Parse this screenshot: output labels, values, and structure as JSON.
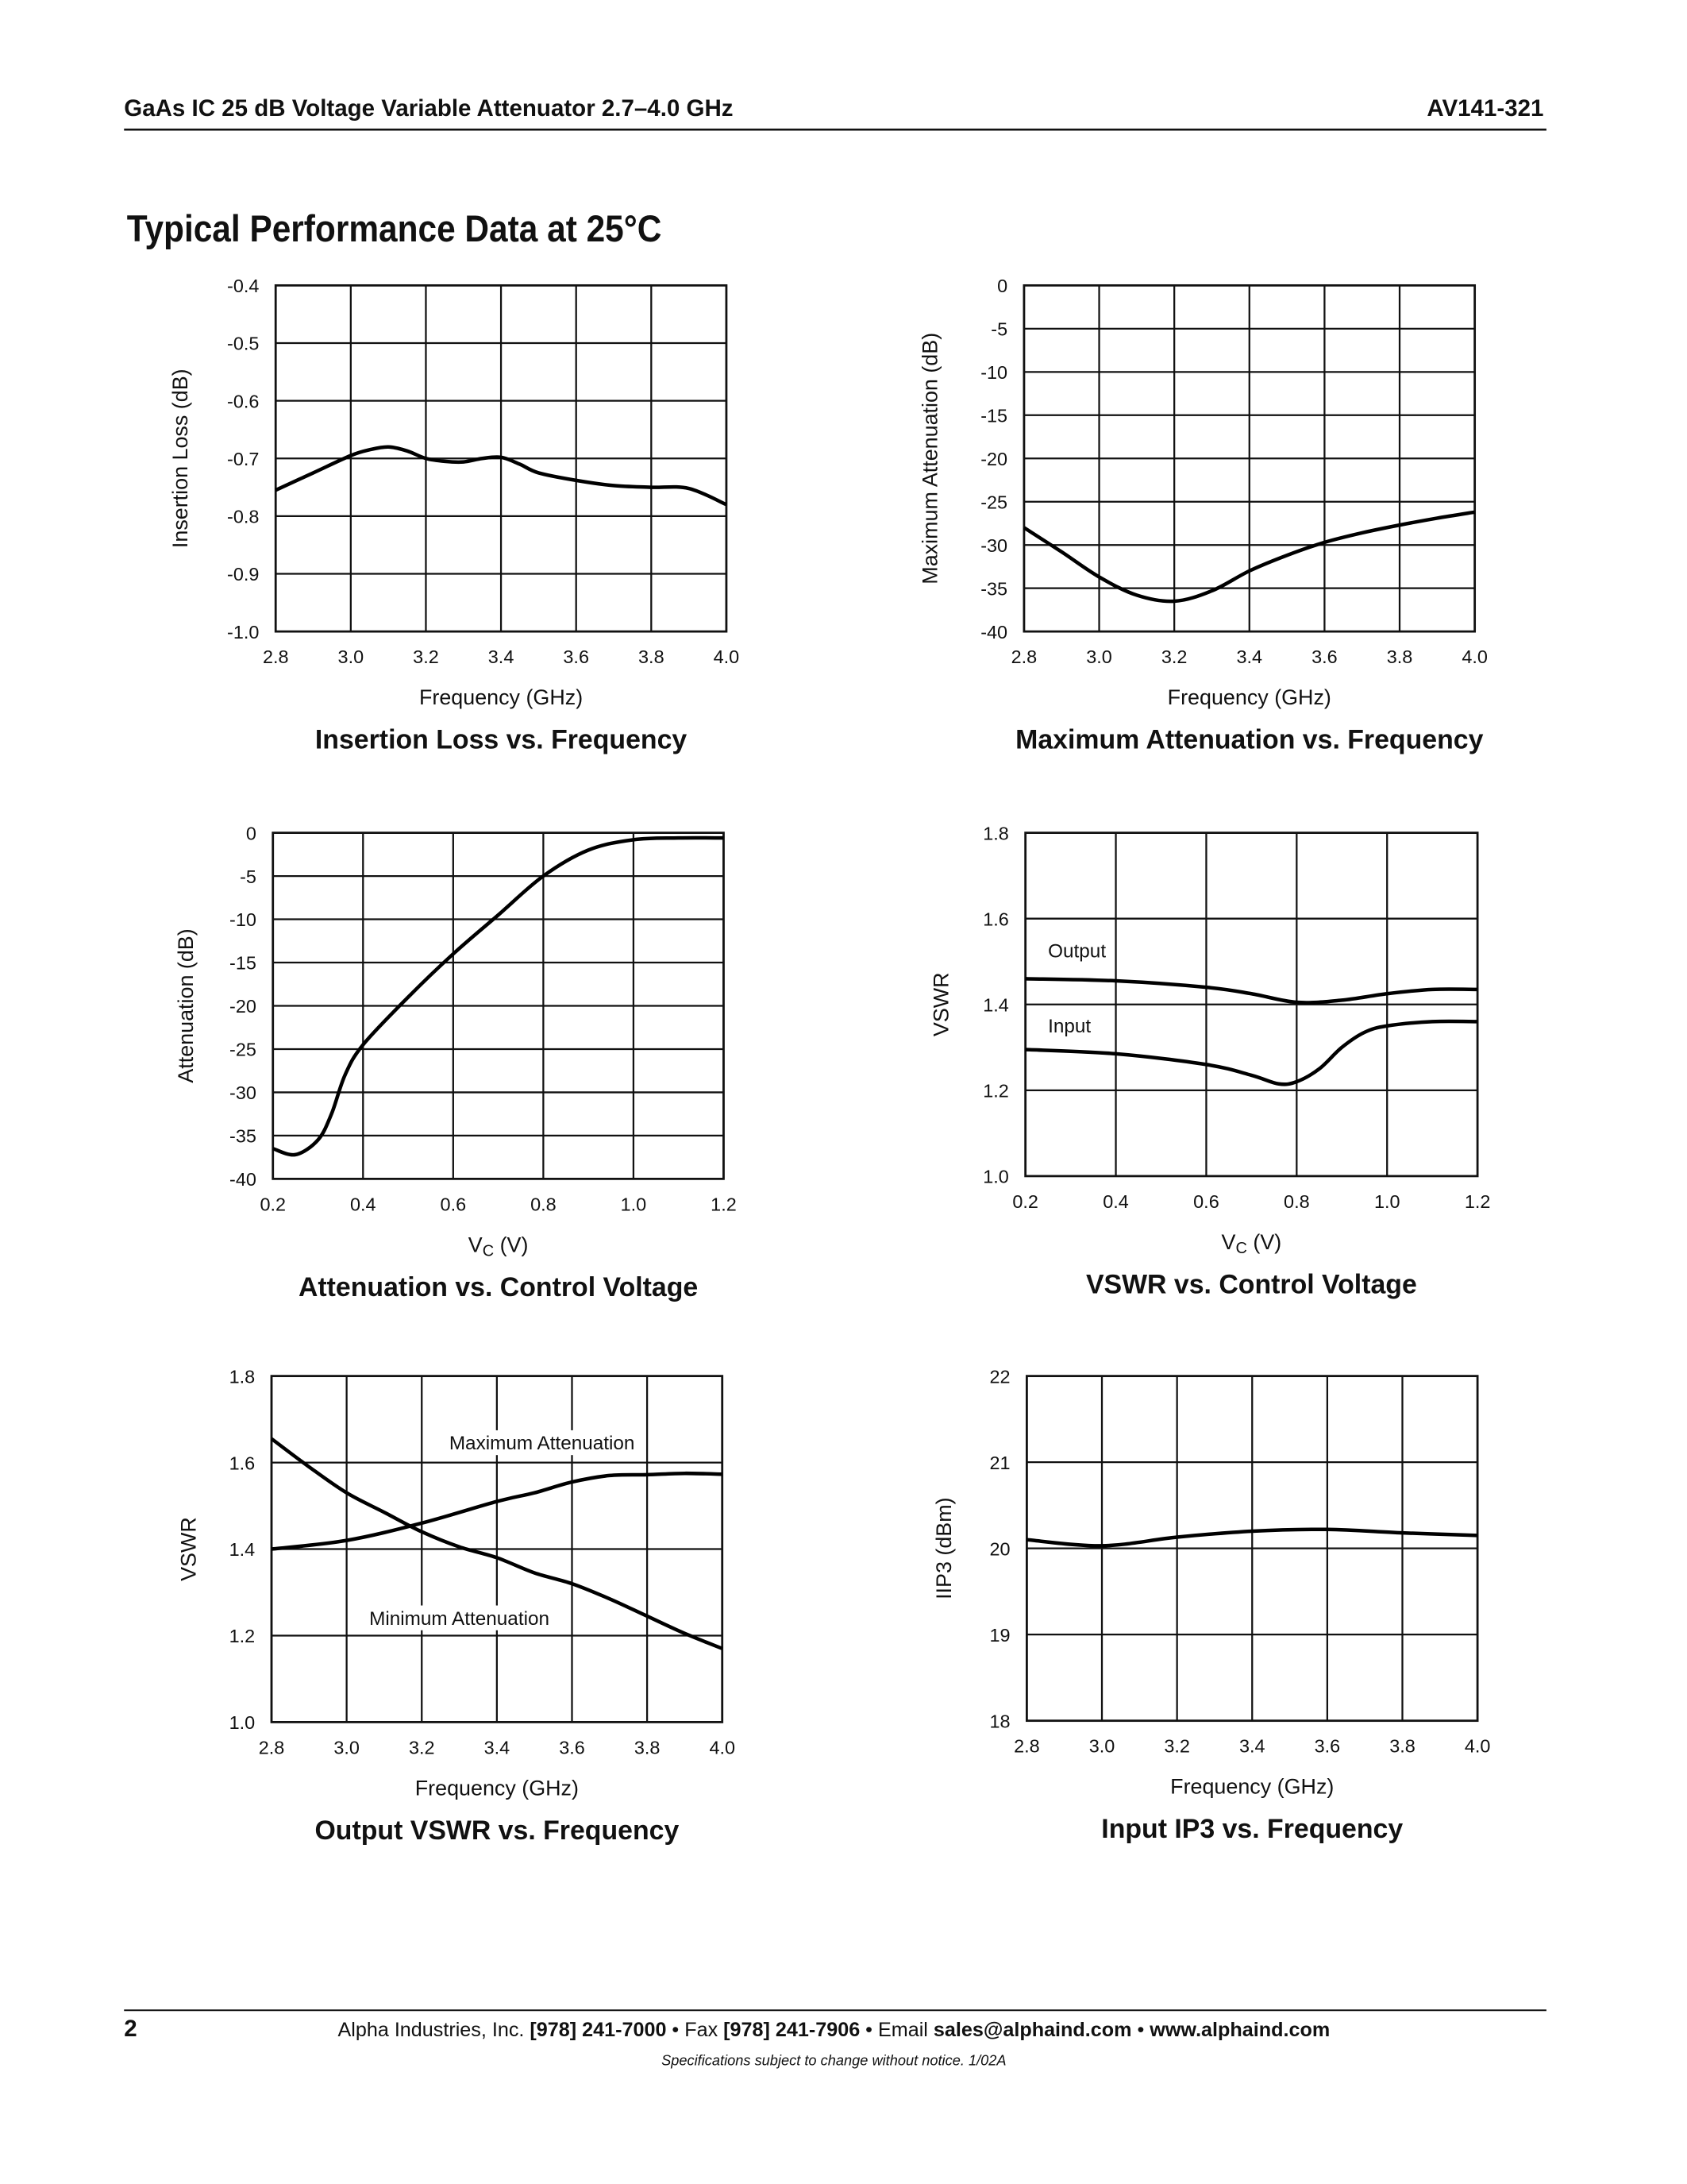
{
  "header": {
    "title": "GaAs IC 25 dB Voltage Variable Attenuator 2.7–4.0 GHz",
    "part_number": "AV141-321",
    "section_title": "Typical Performance Data at 25°C"
  },
  "footer": {
    "page_number": "2",
    "company": "Alpha Industries, Inc. ",
    "phone": "[978] 241-7000",
    "fax_label": " • Fax ",
    "fax": "[978] 241-7906",
    "email_label": " • Email ",
    "email": "sales@alphaind.com",
    "sep": " • ",
    "website": "www.alphaind.com",
    "note": "Specifications subject to change without notice.  1/02A"
  },
  "chart_data": [
    {
      "type": "line",
      "title": "Insertion Loss vs. Frequency",
      "xlabel": "Frequency (GHz)",
      "ylabel": "Insertion Loss (dB)",
      "xlim": [
        2.8,
        4.0
      ],
      "ylim": [
        -1.0,
        -0.4
      ],
      "xticks": [
        "2.8",
        "3.0",
        "3.2",
        "3.4",
        "3.6",
        "3.8",
        "4.0"
      ],
      "yticks": [
        "-1.0",
        "-0.9",
        "-0.8",
        "-0.7",
        "-0.6",
        "-0.5",
        "-0.4"
      ],
      "grid": true,
      "series": [
        {
          "x": [
            2.8,
            2.9,
            3.0,
            3.05,
            3.1,
            3.15,
            3.2,
            3.25,
            3.3,
            3.35,
            3.4,
            3.45,
            3.5,
            3.6,
            3.7,
            3.8,
            3.9,
            4.0
          ],
          "y": [
            -0.755,
            -0.725,
            -0.695,
            -0.685,
            -0.68,
            -0.687,
            -0.7,
            -0.705,
            -0.706,
            -0.7,
            -0.698,
            -0.71,
            -0.725,
            -0.738,
            -0.747,
            -0.75,
            -0.752,
            -0.78
          ]
        }
      ]
    },
    {
      "type": "line",
      "title": "Maximum Attenuation vs. Frequency",
      "xlabel": "Frequency (GHz)",
      "ylabel": "Maximum Attenuation (dB)",
      "xlim": [
        2.8,
        4.0
      ],
      "ylim": [
        -40,
        0
      ],
      "xticks": [
        "2.8",
        "3.0",
        "3.2",
        "3.4",
        "3.6",
        "3.8",
        "4.0"
      ],
      "yticks": [
        "-40",
        "-35",
        "-30",
        "-25",
        "-20",
        "-15",
        "-10",
        "-5",
        "0"
      ],
      "grid": true,
      "series": [
        {
          "x": [
            2.8,
            2.9,
            3.0,
            3.1,
            3.2,
            3.3,
            3.4,
            3.5,
            3.6,
            3.7,
            3.8,
            3.9,
            4.0
          ],
          "y": [
            -28,
            -30.8,
            -33.7,
            -35.8,
            -36.5,
            -35.3,
            -33,
            -31.2,
            -29.7,
            -28.6,
            -27.7,
            -26.9,
            -26.2
          ]
        }
      ]
    },
    {
      "type": "line",
      "title": "Attenuation vs. Control Voltage",
      "xlabel_main": "V",
      "xlabel_sub": "C",
      "xlabel_rest": " (V)",
      "ylabel": "Attenuation (dB)",
      "xlim": [
        0.2,
        1.2
      ],
      "ylim": [
        -40,
        0
      ],
      "xticks": [
        "0.2",
        "0.4",
        "0.6",
        "0.8",
        "1.0",
        "1.2"
      ],
      "yticks": [
        "-40",
        "-35",
        "-30",
        "-25",
        "-20",
        "-15",
        "-10",
        "-5",
        "0"
      ],
      "grid": true,
      "series": [
        {
          "x": [
            0.2,
            0.25,
            0.3,
            0.33,
            0.36,
            0.4,
            0.5,
            0.6,
            0.7,
            0.8,
            0.9,
            1.0,
            1.1,
            1.2
          ],
          "y": [
            -36.5,
            -37.2,
            -35.5,
            -32.5,
            -28,
            -24.5,
            -19,
            -14,
            -9.5,
            -5,
            -2,
            -0.8,
            -0.6,
            -0.6
          ]
        }
      ]
    },
    {
      "type": "line",
      "title": "VSWR vs. Control Voltage",
      "xlabel_main": "V",
      "xlabel_sub": "C",
      "xlabel_rest": " (V)",
      "ylabel": "VSWR",
      "xlim": [
        0.2,
        1.2
      ],
      "ylim": [
        1.0,
        1.8
      ],
      "xticks": [
        "0.2",
        "0.4",
        "0.6",
        "0.8",
        "1.0",
        "1.2"
      ],
      "yticks": [
        "1.0",
        "1.2",
        "1.4",
        "1.6",
        "1.8"
      ],
      "grid": true,
      "series": [
        {
          "name": "Output",
          "x": [
            0.2,
            0.4,
            0.6,
            0.7,
            0.8,
            0.9,
            1.0,
            1.1,
            1.2
          ],
          "y": [
            1.46,
            1.455,
            1.44,
            1.425,
            1.405,
            1.41,
            1.425,
            1.435,
            1.435
          ]
        },
        {
          "name": "Input",
          "x": [
            0.2,
            0.4,
            0.6,
            0.7,
            0.76,
            0.8,
            0.85,
            0.9,
            0.95,
            1.0,
            1.1,
            1.2
          ],
          "y": [
            1.295,
            1.285,
            1.26,
            1.235,
            1.215,
            1.22,
            1.25,
            1.3,
            1.335,
            1.35,
            1.36,
            1.36
          ]
        }
      ]
    },
    {
      "type": "line",
      "title": "Output VSWR vs. Frequency",
      "xlabel": "Frequency (GHz)",
      "ylabel": "VSWR",
      "xlim": [
        2.8,
        4.0
      ],
      "ylim": [
        1.0,
        1.8
      ],
      "xticks": [
        "2.8",
        "3.0",
        "3.2",
        "3.4",
        "3.6",
        "3.8",
        "4.0"
      ],
      "yticks": [
        "1.0",
        "1.2",
        "1.4",
        "1.6",
        "1.8"
      ],
      "grid": true,
      "series": [
        {
          "name": "Maximum Attenuation",
          "x": [
            2.8,
            3.0,
            3.2,
            3.4,
            3.5,
            3.6,
            3.7,
            3.8,
            3.9,
            4.0
          ],
          "y": [
            1.4,
            1.42,
            1.46,
            1.51,
            1.53,
            1.555,
            1.57,
            1.572,
            1.575,
            1.573
          ]
        },
        {
          "name": "Minimum Attenuation",
          "x": [
            2.8,
            2.9,
            3.0,
            3.1,
            3.2,
            3.3,
            3.4,
            3.5,
            3.6,
            3.7,
            3.8,
            3.9,
            4.0
          ],
          "y": [
            1.655,
            1.59,
            1.53,
            1.485,
            1.44,
            1.405,
            1.38,
            1.345,
            1.32,
            1.285,
            1.245,
            1.205,
            1.17
          ]
        }
      ]
    },
    {
      "type": "line",
      "title": "Input IP3 vs. Frequency",
      "xlabel": "Frequency (GHz)",
      "ylabel": "IIP3 (dBm)",
      "xlim": [
        2.8,
        4.0
      ],
      "ylim": [
        18,
        22
      ],
      "xticks": [
        "2.8",
        "3.0",
        "3.2",
        "3.4",
        "3.6",
        "3.8",
        "4.0"
      ],
      "yticks": [
        "18",
        "19",
        "20",
        "21",
        "22"
      ],
      "grid": true,
      "series": [
        {
          "x": [
            2.8,
            3.0,
            3.2,
            3.4,
            3.6,
            3.8,
            4.0
          ],
          "y": [
            20.1,
            20.03,
            20.13,
            20.2,
            20.22,
            20.18,
            20.15
          ]
        }
      ]
    }
  ]
}
